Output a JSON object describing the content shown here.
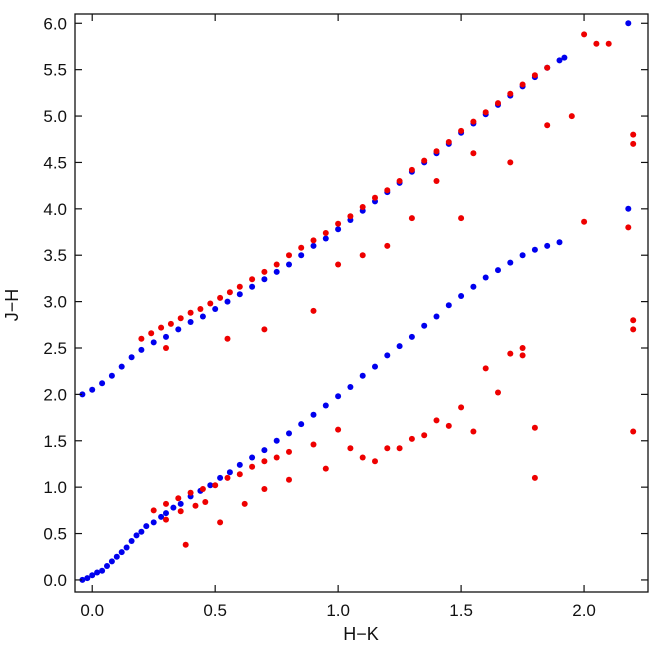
{
  "chart_data": {
    "type": "scatter",
    "title": "",
    "xlabel": "H−K",
    "ylabel": "J−H",
    "xlim": [
      -0.07,
      2.26
    ],
    "ylim": [
      -0.13,
      6.1
    ],
    "grid": false,
    "legend": "none",
    "x_ticks": [
      {
        "value": 0.0,
        "label": "0.0"
      },
      {
        "value": 0.5,
        "label": "0.5"
      },
      {
        "value": 1.0,
        "label": "1.0"
      },
      {
        "value": 1.5,
        "label": "1.5"
      },
      {
        "value": 2.0,
        "label": "2.0"
      }
    ],
    "y_ticks": [
      {
        "value": 0.0,
        "label": "0.0"
      },
      {
        "value": 0.5,
        "label": "0.5"
      },
      {
        "value": 1.0,
        "label": "1.0"
      },
      {
        "value": 1.5,
        "label": "1.5"
      },
      {
        "value": 2.0,
        "label": "2.0"
      },
      {
        "value": 2.5,
        "label": "2.5"
      },
      {
        "value": 3.0,
        "label": "3.0"
      },
      {
        "value": 3.5,
        "label": "3.5"
      },
      {
        "value": 4.0,
        "label": "4.0"
      },
      {
        "value": 4.5,
        "label": "4.5"
      },
      {
        "value": 5.0,
        "label": "5.0"
      },
      {
        "value": 5.5,
        "label": "5.5"
      },
      {
        "value": 6.0,
        "label": "6.0"
      }
    ],
    "series": [
      {
        "color": "#0000ee",
        "points": [
          [
            -0.04,
            0.0
          ],
          [
            -0.02,
            0.02
          ],
          [
            0.0,
            0.05
          ],
          [
            0.02,
            0.08
          ],
          [
            0.04,
            0.1
          ],
          [
            0.06,
            0.15
          ],
          [
            0.08,
            0.2
          ],
          [
            0.1,
            0.25
          ],
          [
            0.12,
            0.3
          ],
          [
            0.14,
            0.35
          ],
          [
            0.16,
            0.42
          ],
          [
            0.18,
            0.48
          ],
          [
            0.2,
            0.52
          ],
          [
            0.22,
            0.58
          ],
          [
            0.25,
            0.62
          ],
          [
            0.28,
            0.68
          ],
          [
            0.3,
            0.72
          ],
          [
            0.33,
            0.78
          ],
          [
            0.36,
            0.82
          ],
          [
            0.4,
            0.9
          ],
          [
            0.44,
            0.96
          ],
          [
            0.48,
            1.02
          ],
          [
            0.52,
            1.1
          ],
          [
            0.56,
            1.16
          ],
          [
            0.6,
            1.24
          ],
          [
            0.65,
            1.32
          ],
          [
            0.7,
            1.4
          ],
          [
            0.75,
            1.5
          ],
          [
            0.8,
            1.58
          ],
          [
            0.85,
            1.68
          ],
          [
            0.9,
            1.78
          ],
          [
            0.95,
            1.88
          ],
          [
            1.0,
            1.98
          ],
          [
            1.05,
            2.08
          ],
          [
            1.1,
            2.2
          ],
          [
            1.15,
            2.3
          ],
          [
            1.2,
            2.42
          ],
          [
            1.25,
            2.52
          ],
          [
            1.3,
            2.62
          ],
          [
            1.35,
            2.74
          ],
          [
            1.4,
            2.84
          ],
          [
            1.45,
            2.96
          ],
          [
            1.5,
            3.06
          ],
          [
            1.55,
            3.16
          ],
          [
            1.6,
            3.26
          ],
          [
            1.65,
            3.34
          ],
          [
            1.7,
            3.42
          ],
          [
            1.75,
            3.5
          ],
          [
            1.8,
            3.56
          ],
          [
            1.85,
            3.6
          ],
          [
            1.9,
            3.64
          ],
          [
            2.18,
            4.0
          ],
          [
            2.18,
            6.0
          ],
          [
            -0.04,
            2.0
          ],
          [
            0.0,
            2.05
          ],
          [
            0.04,
            2.12
          ],
          [
            0.08,
            2.2
          ],
          [
            0.12,
            2.3
          ],
          [
            0.16,
            2.4
          ],
          [
            0.2,
            2.48
          ],
          [
            0.25,
            2.56
          ],
          [
            0.3,
            2.62
          ],
          [
            0.35,
            2.7
          ],
          [
            0.4,
            2.78
          ],
          [
            0.45,
            2.84
          ],
          [
            0.5,
            2.92
          ],
          [
            0.55,
            3.0
          ],
          [
            0.6,
            3.08
          ],
          [
            0.65,
            3.16
          ],
          [
            0.7,
            3.24
          ],
          [
            0.75,
            3.32
          ],
          [
            0.8,
            3.4
          ],
          [
            0.85,
            3.5
          ],
          [
            0.9,
            3.6
          ],
          [
            0.95,
            3.68
          ],
          [
            1.0,
            3.78
          ],
          [
            1.05,
            3.88
          ],
          [
            1.1,
            3.98
          ],
          [
            1.15,
            4.08
          ],
          [
            1.2,
            4.18
          ],
          [
            1.25,
            4.28
          ],
          [
            1.3,
            4.4
          ],
          [
            1.35,
            4.5
          ],
          [
            1.4,
            4.6
          ],
          [
            1.45,
            4.7
          ],
          [
            1.5,
            4.82
          ],
          [
            1.55,
            4.92
          ],
          [
            1.6,
            5.02
          ],
          [
            1.65,
            5.12
          ],
          [
            1.7,
            5.22
          ],
          [
            1.75,
            5.32
          ],
          [
            1.8,
            5.42
          ],
          [
            1.85,
            5.52
          ],
          [
            1.9,
            5.6
          ],
          [
            1.92,
            5.63
          ]
        ]
      },
      {
        "color": "#ee0000",
        "points": [
          [
            0.2,
            2.6
          ],
          [
            0.24,
            2.66
          ],
          [
            0.28,
            2.72
          ],
          [
            0.32,
            2.76
          ],
          [
            0.36,
            2.82
          ],
          [
            0.4,
            2.88
          ],
          [
            0.44,
            2.92
          ],
          [
            0.48,
            2.98
          ],
          [
            0.52,
            3.04
          ],
          [
            0.56,
            3.1
          ],
          [
            0.6,
            3.16
          ],
          [
            0.65,
            3.24
          ],
          [
            0.7,
            3.32
          ],
          [
            0.75,
            3.4
          ],
          [
            0.8,
            3.5
          ],
          [
            0.85,
            3.58
          ],
          [
            0.9,
            3.66
          ],
          [
            0.95,
            3.74
          ],
          [
            1.0,
            3.84
          ],
          [
            1.05,
            3.92
          ],
          [
            1.1,
            4.02
          ],
          [
            1.15,
            4.12
          ],
          [
            1.2,
            4.2
          ],
          [
            1.25,
            4.3
          ],
          [
            1.3,
            4.42
          ],
          [
            1.35,
            4.52
          ],
          [
            1.4,
            4.62
          ],
          [
            1.45,
            4.72
          ],
          [
            1.5,
            4.84
          ],
          [
            1.55,
            4.94
          ],
          [
            1.6,
            5.04
          ],
          [
            1.65,
            5.14
          ],
          [
            1.7,
            5.24
          ],
          [
            1.75,
            5.34
          ],
          [
            1.8,
            5.44
          ],
          [
            1.85,
            5.52
          ],
          [
            0.3,
            2.5
          ],
          [
            0.55,
            2.6
          ],
          [
            0.7,
            2.7
          ],
          [
            0.9,
            2.9
          ],
          [
            1.0,
            3.4
          ],
          [
            1.1,
            3.5
          ],
          [
            1.2,
            3.6
          ],
          [
            1.3,
            3.9
          ],
          [
            1.4,
            4.3
          ],
          [
            1.55,
            4.6
          ],
          [
            1.7,
            4.5
          ],
          [
            1.85,
            4.9
          ],
          [
            1.95,
            5.0
          ],
          [
            2.0,
            5.88
          ],
          [
            2.05,
            5.78
          ],
          [
            2.1,
            5.78
          ],
          [
            2.2,
            4.7
          ],
          [
            2.2,
            4.8
          ],
          [
            2.2,
            2.7
          ],
          [
            2.2,
            2.8
          ],
          [
            2.2,
            1.6
          ],
          [
            2.0,
            3.86
          ],
          [
            2.18,
            3.8
          ],
          [
            1.5,
            3.9
          ],
          [
            0.25,
            0.75
          ],
          [
            0.3,
            0.82
          ],
          [
            0.35,
            0.88
          ],
          [
            0.4,
            0.94
          ],
          [
            0.45,
            0.98
          ],
          [
            0.5,
            1.02
          ],
          [
            0.55,
            1.1
          ],
          [
            0.6,
            1.14
          ],
          [
            0.65,
            1.22
          ],
          [
            0.7,
            1.28
          ],
          [
            0.75,
            1.32
          ],
          [
            0.8,
            1.38
          ],
          [
            0.9,
            1.46
          ],
          [
            1.0,
            1.62
          ],
          [
            1.05,
            1.42
          ],
          [
            1.1,
            1.32
          ],
          [
            1.2,
            1.42
          ],
          [
            1.3,
            1.52
          ],
          [
            1.4,
            1.72
          ],
          [
            1.5,
            1.86
          ],
          [
            1.6,
            2.28
          ],
          [
            1.7,
            2.44
          ],
          [
            1.75,
            2.5
          ],
          [
            1.8,
            1.1
          ],
          [
            0.52,
            0.62
          ],
          [
            0.62,
            0.82
          ],
          [
            0.7,
            0.98
          ],
          [
            0.8,
            1.08
          ],
          [
            0.95,
            1.2
          ],
          [
            1.15,
            1.28
          ],
          [
            1.25,
            1.42
          ],
          [
            1.35,
            1.56
          ],
          [
            1.45,
            1.66
          ],
          [
            1.55,
            1.6
          ],
          [
            1.65,
            2.02
          ],
          [
            1.75,
            2.42
          ],
          [
            1.8,
            1.64
          ],
          [
            0.38,
            0.38
          ],
          [
            0.3,
            0.65
          ],
          [
            0.36,
            0.74
          ],
          [
            0.42,
            0.8
          ],
          [
            0.46,
            0.84
          ]
        ]
      }
    ]
  }
}
